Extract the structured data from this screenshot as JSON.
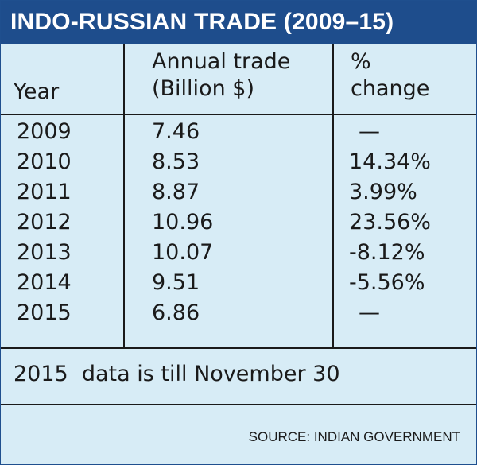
{
  "chart_data": {
    "type": "table",
    "title": "INDO-RUSSIAN TRADE (2009–15)",
    "columns": [
      {
        "label_lines": [
          "Year"
        ]
      },
      {
        "label_lines": [
          "Annual trade",
          "(Billion $)"
        ]
      },
      {
        "label_lines": [
          "%",
          "change"
        ]
      }
    ],
    "rows": [
      {
        "year": "2009",
        "trade": "7.46",
        "change": "—"
      },
      {
        "year": "2010",
        "trade": "8.53",
        "change": "14.34%"
      },
      {
        "year": "2011",
        "trade": "8.87",
        "change": "3.99%"
      },
      {
        "year": "2012",
        "trade": "10.96",
        "change": "23.56%"
      },
      {
        "year": "2013",
        "trade": "10.07",
        "change": "-8.12%"
      },
      {
        "year": "2014",
        "trade": "9.51",
        "change": "-5.56%"
      },
      {
        "year": "2015",
        "trade": "6.86",
        "change": "—"
      }
    ],
    "note": "2015  data is till November 30",
    "source": "SOURCE: INDIAN GOVERNMENT"
  },
  "colors": {
    "title_bar": "#1e4d8c",
    "panel": "#d7ecf6",
    "text": "#1a1a1a"
  }
}
